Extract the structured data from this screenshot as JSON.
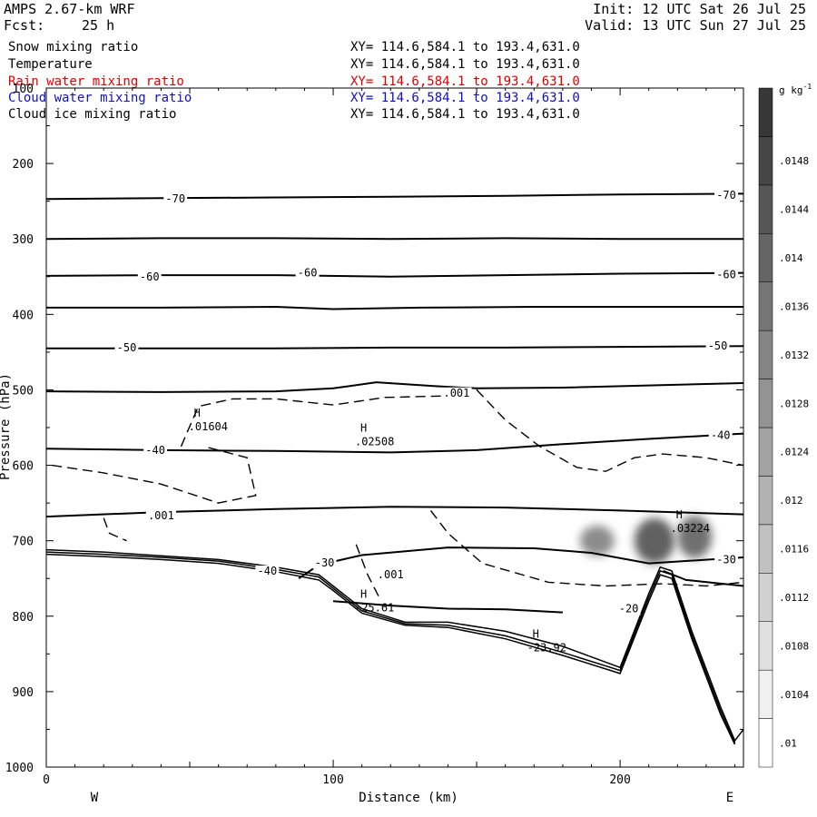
{
  "header": {
    "model": "AMPS 2.67-km WRF",
    "fcst_label": "Fcst:",
    "fcst_value": "25 h",
    "init": "Init: 12 UTC Sat 26 Jul 25",
    "valid": "Valid: 13 UTC Sun 27 Jul 25"
  },
  "legend": [
    {
      "name": "Snow mixing ratio",
      "xy": "XY= 114.6,584.1 to 193.4,631.0",
      "color": "#000000"
    },
    {
      "name": "Temperature",
      "xy": "XY= 114.6,584.1 to 193.4,631.0",
      "color": "#000000"
    },
    {
      "name": "Rain water mixing ratio",
      "xy": "XY= 114.6,584.1 to 193.4,631.0",
      "color": "#e00000"
    },
    {
      "name": "Cloud water mixing ratio",
      "xy": "XY= 114.6,584.1 to 193.4,631.0",
      "color": "#1010c0"
    },
    {
      "name": "Cloud ice mixing ratio",
      "xy": "XY= 114.6,584.1 to 193.4,631.0",
      "color": "#000000"
    }
  ],
  "chart_data": {
    "type": "cross-section",
    "xlabel": "Distance (km)",
    "ylabel": "Pressure (hPa)",
    "xlim": [
      0,
      243
    ],
    "ylim": [
      1000,
      100
    ],
    "x_ticks": [
      0,
      100,
      200
    ],
    "y_ticks": [
      100,
      200,
      300,
      400,
      500,
      600,
      700,
      800,
      900,
      1000
    ],
    "x_end_labels": [
      "W",
      "E"
    ],
    "colorbar": {
      "units": "g kg",
      "units_exp": "-1",
      "ticks": [
        ".01",
        ".0104",
        ".0108",
        ".0112",
        ".0116",
        ".012",
        ".0124",
        ".0128",
        ".0132",
        ".0136",
        ".014",
        ".0144",
        ".0148"
      ],
      "range": [
        0.01,
        0.0152
      ]
    },
    "temperature_contours": [
      {
        "level": -70,
        "label": "-70",
        "points": [
          [
            0,
            247
          ],
          [
            40,
            246
          ],
          [
            80,
            245
          ],
          [
            120,
            244
          ],
          [
            160,
            243
          ],
          [
            200,
            241
          ],
          [
            243,
            240
          ]
        ]
      },
      {
        "level": -65,
        "label": "",
        "points": [
          [
            0,
            300
          ],
          [
            40,
            299
          ],
          [
            80,
            299
          ],
          [
            120,
            300
          ],
          [
            160,
            299
          ],
          [
            200,
            300
          ],
          [
            243,
            300
          ]
        ]
      },
      {
        "level": -60,
        "label": "-60",
        "points": [
          [
            0,
            349
          ],
          [
            40,
            348
          ],
          [
            80,
            348
          ],
          [
            120,
            350
          ],
          [
            160,
            348
          ],
          [
            200,
            346
          ],
          [
            243,
            345
          ]
        ]
      },
      {
        "level": -55,
        "label": "",
        "points": [
          [
            0,
            391
          ],
          [
            40,
            391
          ],
          [
            80,
            390
          ],
          [
            100,
            393
          ],
          [
            130,
            391
          ],
          [
            170,
            390
          ],
          [
            210,
            390
          ],
          [
            243,
            390
          ]
        ]
      },
      {
        "level": -50,
        "label": "-50",
        "points": [
          [
            0,
            445
          ],
          [
            40,
            445
          ],
          [
            80,
            445
          ],
          [
            120,
            444
          ],
          [
            160,
            444
          ],
          [
            200,
            443
          ],
          [
            243,
            442
          ]
        ]
      },
      {
        "level": -45,
        "label": "",
        "points": [
          [
            0,
            502
          ],
          [
            40,
            503
          ],
          [
            80,
            502
          ],
          [
            100,
            498
          ],
          [
            115,
            490
          ],
          [
            135,
            495
          ],
          [
            150,
            498
          ],
          [
            180,
            497
          ],
          [
            243,
            491
          ]
        ]
      },
      {
        "level": -40,
        "label": "-40",
        "points": [
          [
            0,
            578
          ],
          [
            40,
            580
          ],
          [
            80,
            581
          ],
          [
            120,
            583
          ],
          [
            150,
            580
          ],
          [
            180,
            572
          ],
          [
            210,
            565
          ],
          [
            243,
            558
          ]
        ]
      },
      {
        "level": -35,
        "label": "",
        "points": [
          [
            0,
            668
          ],
          [
            40,
            662
          ],
          [
            80,
            658
          ],
          [
            120,
            655
          ],
          [
            160,
            656
          ],
          [
            200,
            660
          ],
          [
            243,
            665
          ]
        ]
      },
      {
        "level": -30,
        "label": "-30",
        "points": [
          [
            88,
            750
          ],
          [
            95,
            732
          ],
          [
            110,
            719
          ],
          [
            140,
            709
          ],
          [
            170,
            710
          ],
          [
            190,
            716
          ],
          [
            210,
            730
          ],
          [
            243,
            722
          ]
        ]
      },
      {
        "level": -25,
        "label": "",
        "points": [
          [
            100,
            780
          ],
          [
            120,
            786
          ],
          [
            140,
            790
          ],
          [
            160,
            791
          ],
          [
            180,
            795
          ]
        ]
      },
      {
        "level": -20,
        "label": "-20",
        "points": [
          [
            215,
            740
          ],
          [
            223,
            752
          ],
          [
            243,
            760
          ]
        ]
      }
    ],
    "temperature_labels": [
      {
        "text": "-70",
        "x": 45,
        "p": 247
      },
      {
        "text": "-70",
        "x": 237,
        "p": 242
      },
      {
        "text": "-60",
        "x": 36,
        "p": 350
      },
      {
        "text": "-60",
        "x": 91,
        "p": 345
      },
      {
        "text": "-60",
        "x": 237,
        "p": 347
      },
      {
        "text": "-50",
        "x": 28,
        "p": 444
      },
      {
        "text": "-50",
        "x": 234,
        "p": 442
      },
      {
        "text": "-40",
        "x": 38,
        "p": 580
      },
      {
        "text": "-40",
        "x": 235,
        "p": 560
      },
      {
        "text": "-40",
        "x": 77,
        "p": 740
      },
      {
        "text": "-30",
        "x": 97,
        "p": 729
      },
      {
        "text": "-30",
        "x": 237,
        "p": 725
      },
      {
        "text": "-20",
        "x": 203,
        "p": 790
      }
    ],
    "snow_contours": [
      {
        "level": 0.001,
        "label": ".001",
        "points": [
          [
            47,
            575
          ],
          [
            53,
            522
          ],
          [
            65,
            512
          ],
          [
            80,
            512
          ],
          [
            100,
            520
          ],
          [
            118,
            510
          ],
          [
            140,
            508
          ],
          [
            150,
            500
          ],
          [
            160,
            540
          ],
          [
            172,
            575
          ],
          [
            185,
            603
          ],
          [
            195,
            608
          ],
          [
            205,
            590
          ],
          [
            215,
            585
          ],
          [
            230,
            590
          ],
          [
            243,
            600
          ]
        ]
      },
      {
        "level": 0.001,
        "label": ".001",
        "points": [
          [
            2,
            600
          ],
          [
            20,
            610
          ],
          [
            40,
            625
          ],
          [
            60,
            650
          ],
          [
            73,
            640
          ],
          [
            70,
            590
          ],
          [
            55,
            575
          ]
        ]
      },
      {
        "level": 0.001,
        "label": ".001",
        "points": [
          [
            20,
            670
          ],
          [
            22,
            690
          ],
          [
            28,
            700
          ]
        ]
      },
      {
        "level": 0.001,
        "label": ".001",
        "points": [
          [
            134,
            660
          ],
          [
            140,
            690
          ],
          [
            152,
            730
          ],
          [
            175,
            755
          ],
          [
            195,
            760
          ],
          [
            215,
            757
          ],
          [
            230,
            760
          ],
          [
            243,
            755
          ]
        ]
      },
      {
        "level": 0.001,
        "label": ".001",
        "points": [
          [
            108,
            705
          ],
          [
            112,
            745
          ],
          [
            116,
            775
          ]
        ]
      }
    ],
    "snow_labels": [
      {
        "text": ".001",
        "x": 143,
        "p": 504
      },
      {
        "text": ".001",
        "x": 40,
        "p": 667
      },
      {
        "text": ".001",
        "x": 120,
        "p": 745
      }
    ],
    "terrain_lines": [
      {
        "points": [
          [
            0,
            712
          ],
          [
            20,
            715
          ],
          [
            40,
            720
          ],
          [
            60,
            725
          ],
          [
            80,
            735
          ],
          [
            95,
            745
          ],
          [
            100,
            760
          ],
          [
            110,
            790
          ],
          [
            125,
            808
          ],
          [
            140,
            808
          ],
          [
            160,
            820
          ],
          [
            180,
            840
          ],
          [
            200,
            868
          ],
          [
            210,
            770
          ],
          [
            214,
            735
          ],
          [
            218,
            740
          ],
          [
            225,
            820
          ],
          [
            235,
            920
          ],
          [
            240,
            965
          ],
          [
            243,
            950
          ]
        ]
      },
      {
        "points": [
          [
            0,
            715
          ],
          [
            20,
            718
          ],
          [
            40,
            722
          ],
          [
            60,
            727
          ],
          [
            80,
            738
          ],
          [
            95,
            748
          ],
          [
            100,
            763
          ],
          [
            110,
            793
          ],
          [
            125,
            810
          ],
          [
            140,
            812
          ],
          [
            160,
            826
          ],
          [
            180,
            848
          ],
          [
            200,
            872
          ],
          [
            210,
            775
          ],
          [
            214,
            740
          ],
          [
            218,
            745
          ],
          [
            225,
            825
          ],
          [
            235,
            925
          ],
          [
            240,
            968
          ]
        ]
      },
      {
        "points": [
          [
            0,
            718
          ],
          [
            20,
            721
          ],
          [
            40,
            725
          ],
          [
            60,
            730
          ],
          [
            80,
            741
          ],
          [
            95,
            752
          ],
          [
            100,
            766
          ],
          [
            110,
            796
          ],
          [
            125,
            812
          ],
          [
            140,
            815
          ],
          [
            160,
            830
          ],
          [
            180,
            852
          ],
          [
            200,
            876
          ],
          [
            210,
            780
          ],
          [
            214,
            745
          ],
          [
            218,
            750
          ],
          [
            225,
            830
          ],
          [
            235,
            930
          ],
          [
            240,
            970
          ]
        ]
      }
    ],
    "highs": [
      {
        "label": "H",
        "value": ".01604",
        "x": 54,
        "p": 545
      },
      {
        "label": "H",
        "value": ".02508",
        "x": 112,
        "p": 565
      },
      {
        "label": "H",
        "value": ".03224",
        "x": 222,
        "p": 680
      },
      {
        "label": "H",
        "value": "-25.61",
        "x": 112,
        "p": 785
      },
      {
        "label": "H",
        "value": "-23.92",
        "x": 172,
        "p": 838
      }
    ],
    "snow_shading": [
      {
        "x": 192,
        "p": 700,
        "rx": 6,
        "rp": 20,
        "value": 0.0126
      },
      {
        "x": 212,
        "p": 700,
        "rx": 7,
        "rp": 30,
        "value": 0.0138
      },
      {
        "x": 226,
        "p": 695,
        "rx": 6,
        "rp": 28,
        "value": 0.0134
      }
    ]
  }
}
